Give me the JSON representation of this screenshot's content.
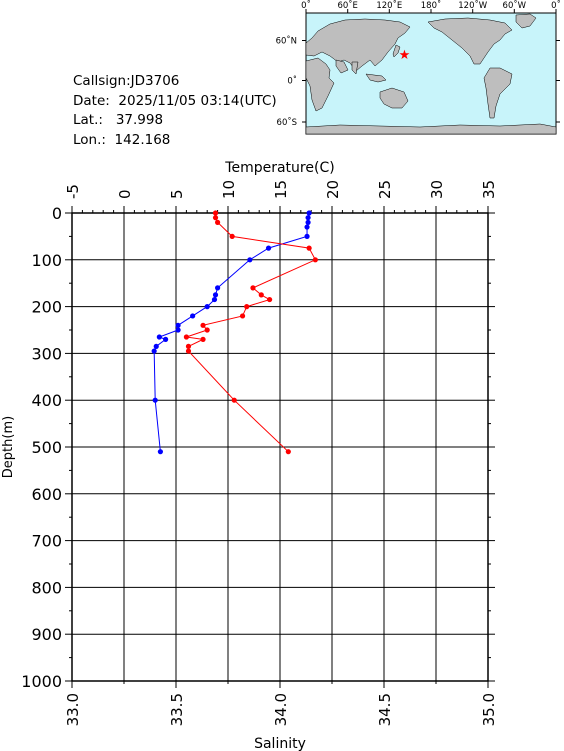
{
  "info": {
    "callsign": "Callsign:JD3706",
    "date": "Date:  2025/11/05 03:14(UTC)",
    "lat_label": "Lat.:",
    "lat_value": "37.998",
    "lon_label": "Lon.:",
    "lon_value": "142.168"
  },
  "map": {
    "lon_labels": [
      "0˚",
      "60˚E",
      "120˚E",
      "180˚",
      "120˚W",
      "60˚W",
      "0˚"
    ],
    "lat_labels": [
      "60˚N",
      "0˚",
      "60˚S"
    ],
    "station_marker": "star-icon",
    "colors": {
      "ocean": "#c8f4fa",
      "land": "#bebebe",
      "marker": "#ff0000"
    }
  },
  "chart_data": {
    "type": "line",
    "top_axis_label": "Temperature(C)",
    "ylabel": "Depth(m)",
    "xlabel": "Salinity",
    "temperature_ticks": [
      "-5",
      "0",
      "5",
      "10",
      "15",
      "20",
      "25",
      "30",
      "35"
    ],
    "salinity_ticks": [
      "33.0",
      "33.5",
      "34.0",
      "34.5",
      "35.0"
    ],
    "depth_ticks": [
      "0",
      "100",
      "200",
      "300",
      "400",
      "500",
      "600",
      "700",
      "800",
      "900",
      "1000"
    ],
    "temperature_range": [
      -5,
      35
    ],
    "salinity_range": [
      33.0,
      35.0
    ],
    "depth_range": [
      0,
      1000
    ],
    "grid": true,
    "series": [
      {
        "variable": "temperature",
        "color": "#0000ff",
        "points": [
          {
            "depth": 0,
            "value": 17.8
          },
          {
            "depth": 10,
            "value": 17.7
          },
          {
            "depth": 20,
            "value": 17.7
          },
          {
            "depth": 30,
            "value": 17.6
          },
          {
            "depth": 50,
            "value": 17.6
          },
          {
            "depth": 75,
            "value": 13.9
          },
          {
            "depth": 100,
            "value": 12.1
          },
          {
            "depth": 160,
            "value": 9.0
          },
          {
            "depth": 175,
            "value": 8.8
          },
          {
            "depth": 185,
            "value": 8.7
          },
          {
            "depth": 200,
            "value": 8.0
          },
          {
            "depth": 220,
            "value": 6.6
          },
          {
            "depth": 240,
            "value": 5.2
          },
          {
            "depth": 250,
            "value": 5.2
          },
          {
            "depth": 265,
            "value": 3.4
          },
          {
            "depth": 270,
            "value": 4.0
          },
          {
            "depth": 285,
            "value": 3.1
          },
          {
            "depth": 295,
            "value": 2.9
          },
          {
            "depth": 400,
            "value": 3.0
          },
          {
            "depth": 510,
            "value": 3.5
          }
        ]
      },
      {
        "variable": "salinity",
        "color": "#ff0000",
        "points": [
          {
            "depth": 0,
            "value": 33.69
          },
          {
            "depth": 10,
            "value": 33.69
          },
          {
            "depth": 20,
            "value": 33.7
          },
          {
            "depth": 50,
            "value": 33.77
          },
          {
            "depth": 75,
            "value": 34.14
          },
          {
            "depth": 100,
            "value": 34.17
          },
          {
            "depth": 160,
            "value": 33.87
          },
          {
            "depth": 175,
            "value": 33.91
          },
          {
            "depth": 185,
            "value": 33.95
          },
          {
            "depth": 200,
            "value": 33.84
          },
          {
            "depth": 220,
            "value": 33.82
          },
          {
            "depth": 240,
            "value": 33.63
          },
          {
            "depth": 250,
            "value": 33.65
          },
          {
            "depth": 265,
            "value": 33.55
          },
          {
            "depth": 270,
            "value": 33.63
          },
          {
            "depth": 285,
            "value": 33.56
          },
          {
            "depth": 295,
            "value": 33.56
          },
          {
            "depth": 400,
            "value": 33.78
          },
          {
            "depth": 510,
            "value": 34.04
          }
        ]
      }
    ]
  }
}
